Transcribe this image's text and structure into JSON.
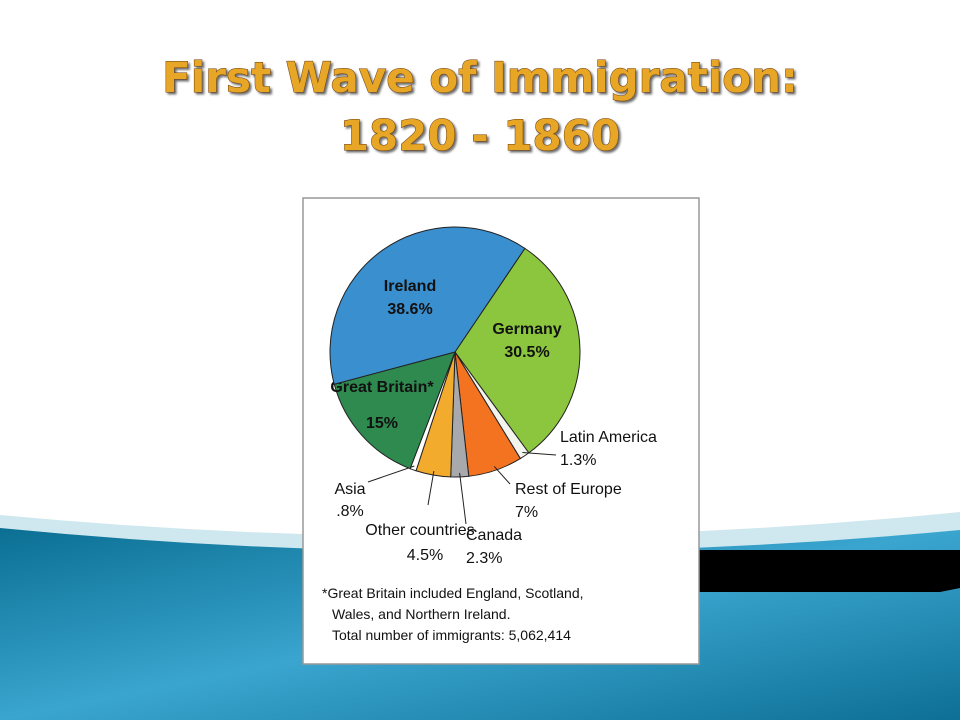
{
  "chart_data": {
    "type": "pie",
    "title": "First Wave of Immigration:",
    "subtitle": "1820 - 1860",
    "categories": [
      "Germany",
      "Latin America",
      "Rest of Europe",
      "Canada",
      "Other countries",
      "Asia",
      "Great Britain*",
      "Ireland"
    ],
    "values": [
      30.5,
      1.3,
      7,
      2.3,
      4.5,
      0.8,
      15,
      38.6
    ],
    "value_labels": [
      "30.5%",
      "1.3%",
      "7%",
      "2.3%",
      "4.5%",
      ".8%",
      "15%",
      "38.6%"
    ],
    "colors": [
      "#8cc63e",
      "#f4f4ee",
      "#f37321",
      "#a7a9ac",
      "#f2ab2c",
      "#ffffff",
      "#2e8a4f",
      "#3a8fcf"
    ],
    "notes": [
      "*Great Britain included England, Scotland,",
      "Wales, and Northern Ireland.",
      "Total number of immigrants: 5,062,414"
    ]
  }
}
